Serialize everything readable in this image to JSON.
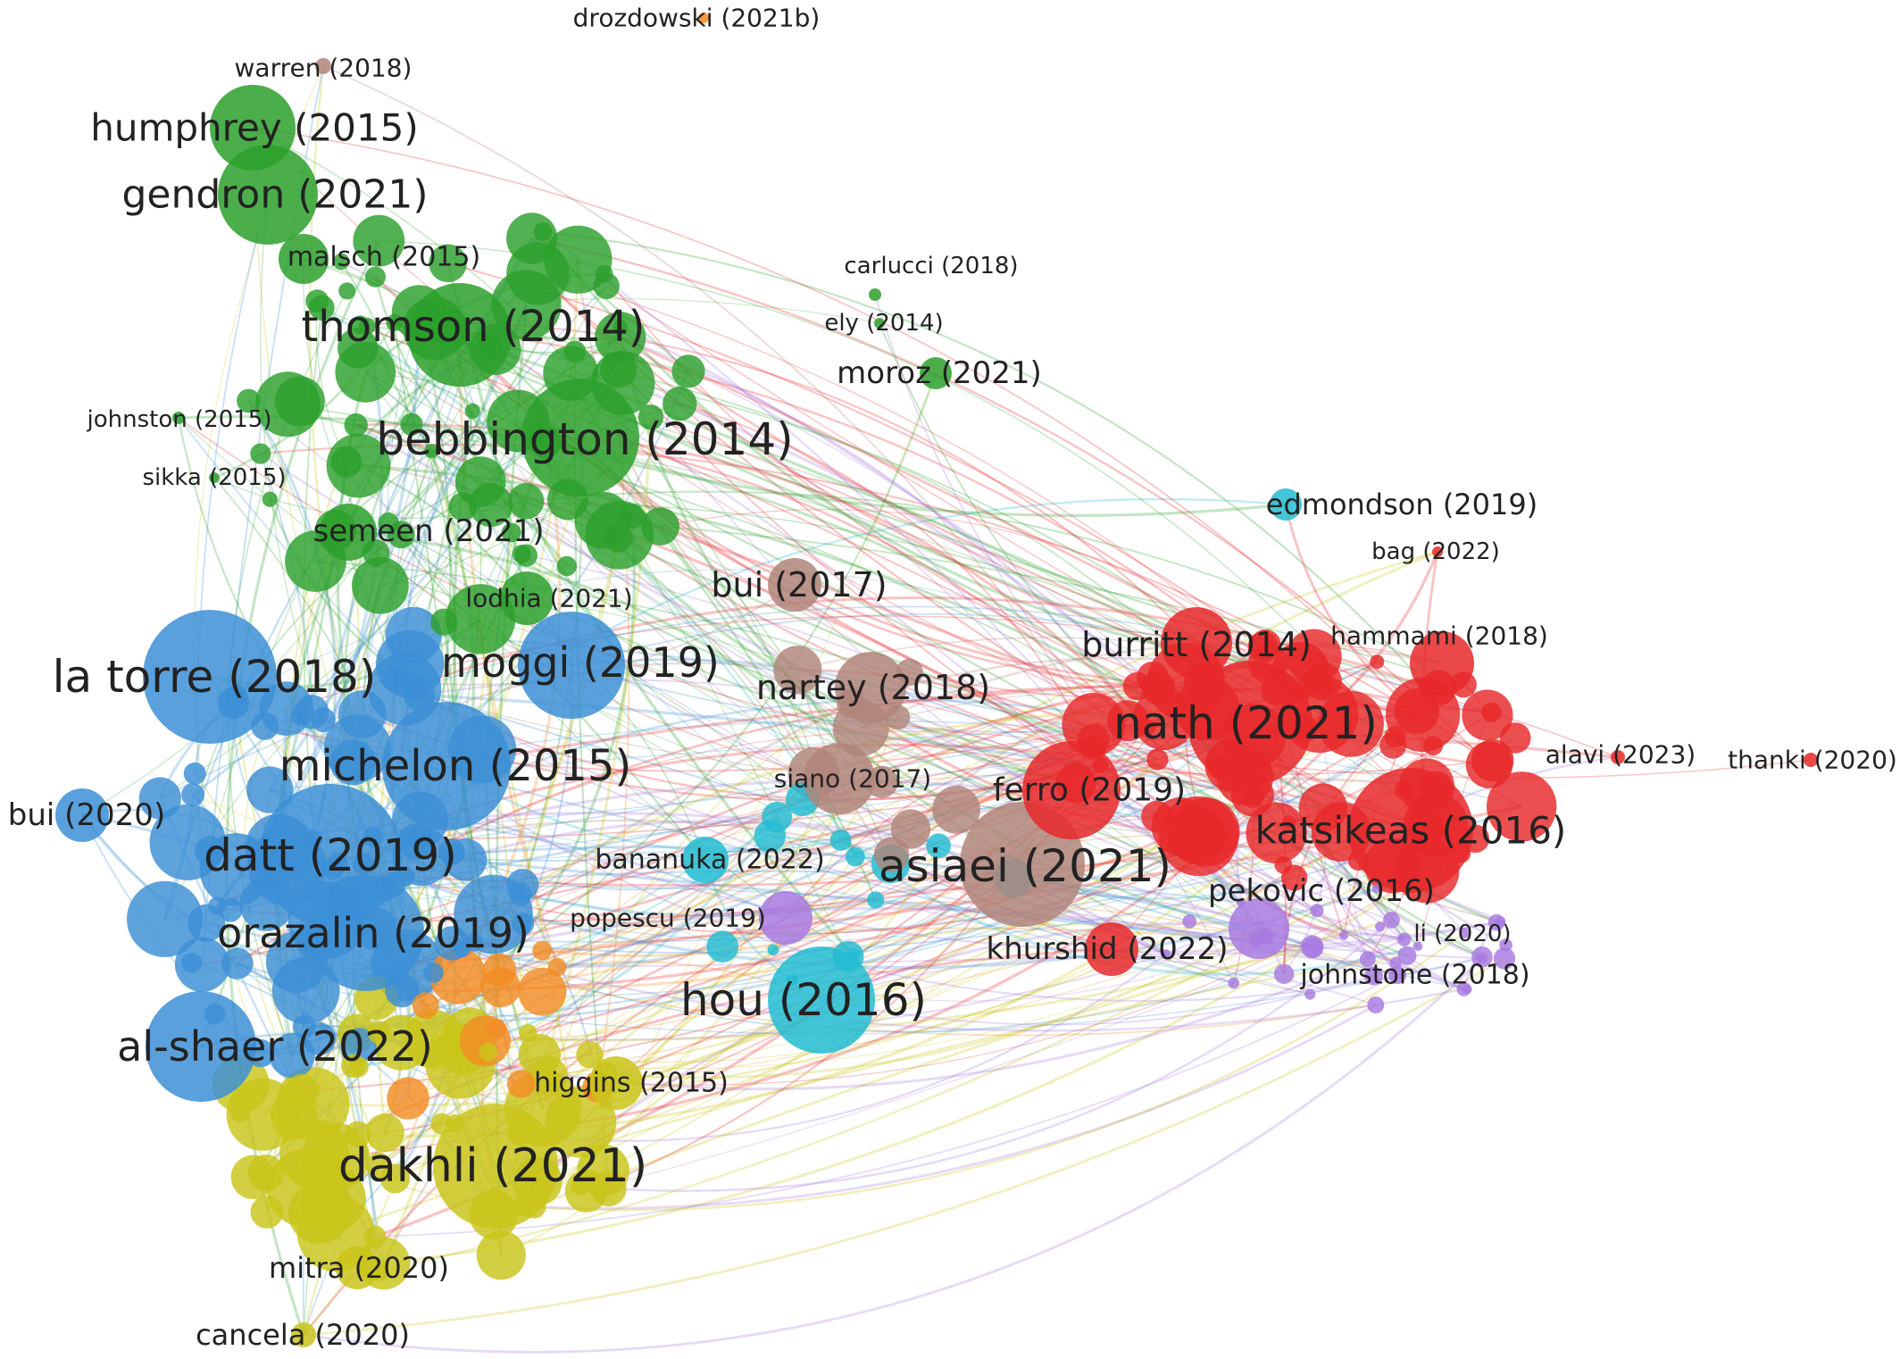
{
  "network": {
    "clusters": [
      {
        "id": "green",
        "color": "#2ca02c"
      },
      {
        "id": "blue",
        "color": "#3c8fd6"
      },
      {
        "id": "red",
        "color": "#e8282a"
      },
      {
        "id": "yellow",
        "color": "#c9c41a"
      },
      {
        "id": "cyan",
        "color": "#22bcd2"
      },
      {
        "id": "purple",
        "color": "#a77ae0"
      },
      {
        "id": "brown",
        "color": "#b0857a"
      },
      {
        "id": "orange",
        "color": "#f38c24"
      }
    ],
    "labeled_nodes": [
      {
        "id": "drozdowski-2021b",
        "label": "drozdowski (2021b)",
        "cluster": "orange",
        "weight": 1
      },
      {
        "id": "warren-2018",
        "label": "warren (2018)",
        "cluster": "brown",
        "weight": 1
      },
      {
        "id": "humphrey-2015",
        "label": "humphrey (2015)",
        "cluster": "green",
        "weight": 7
      },
      {
        "id": "gendron-2021",
        "label": "gendron (2021)",
        "cluster": "green",
        "weight": 8
      },
      {
        "id": "malsch-2015",
        "label": "malsch (2015)",
        "cluster": "green",
        "weight": 3
      },
      {
        "id": "carlucci-2018",
        "label": "carlucci (2018)",
        "cluster": "green",
        "weight": 1
      },
      {
        "id": "ely-2014",
        "label": "ely (2014)",
        "cluster": "green",
        "weight": 1
      },
      {
        "id": "thomson-2014",
        "label": "thomson (2014)",
        "cluster": "green",
        "weight": 9
      },
      {
        "id": "moroz-2021",
        "label": "moroz (2021)",
        "cluster": "green",
        "weight": 3
      },
      {
        "id": "johnston-2015",
        "label": "johnston (2015)",
        "cluster": "green",
        "weight": 1
      },
      {
        "id": "bebbington-2014",
        "label": "bebbington (2014)",
        "cluster": "green",
        "weight": 10
      },
      {
        "id": "sikka-2015",
        "label": "sikka (2015)",
        "cluster": "green",
        "weight": 1
      },
      {
        "id": "edmondson-2019",
        "label": "edmondson (2019)",
        "cluster": "cyan",
        "weight": 3
      },
      {
        "id": "semeen-2021",
        "label": "semeen (2021)",
        "cluster": "green",
        "weight": 5
      },
      {
        "id": "bag-2022",
        "label": "bag (2022)",
        "cluster": "red",
        "weight": 1
      },
      {
        "id": "bui-2017",
        "label": "bui (2017)",
        "cluster": "brown",
        "weight": 5
      },
      {
        "id": "lodhia-2021",
        "label": "lodhia (2021)",
        "cluster": "green",
        "weight": 3
      },
      {
        "id": "hammami-2018",
        "label": "hammami (2018)",
        "cluster": "red",
        "weight": 4
      },
      {
        "id": "burritt-2014",
        "label": "burritt (2014)",
        "cluster": "red",
        "weight": 6
      },
      {
        "id": "la-torre-2018",
        "label": "la torre (2018)",
        "cluster": "blue",
        "weight": 10
      },
      {
        "id": "moggi-2019",
        "label": "moggi (2019)",
        "cluster": "blue",
        "weight": 8
      },
      {
        "id": "nartey-2018",
        "label": "nartey (2018)",
        "cluster": "brown",
        "weight": 6
      },
      {
        "id": "nath-2021",
        "label": "nath (2021)",
        "cluster": "red",
        "weight": 10
      },
      {
        "id": "michelon-2015",
        "label": "michelon (2015)",
        "cluster": "blue",
        "weight": 10
      },
      {
        "id": "alavi-2023",
        "label": "alavi (2023)",
        "cluster": "red",
        "weight": 1
      },
      {
        "id": "thanki-2020",
        "label": "thanki (2020)",
        "cluster": "red",
        "weight": 1
      },
      {
        "id": "siano-2017",
        "label": "siano (2017)",
        "cluster": "brown",
        "weight": 4
      },
      {
        "id": "ferro-2019",
        "label": "ferro (2019)",
        "cluster": "red",
        "weight": 5
      },
      {
        "id": "bui-2020",
        "label": "bui (2020)",
        "cluster": "blue",
        "weight": 4
      },
      {
        "id": "katsikeas-2016",
        "label": "katsikeas (2016)",
        "cluster": "red",
        "weight": 9
      },
      {
        "id": "datt-2019",
        "label": "datt (2019)",
        "cluster": "blue",
        "weight": 10
      },
      {
        "id": "bananuka-2022",
        "label": "bananuka (2022)",
        "cluster": "cyan",
        "weight": 2
      },
      {
        "id": "asiaei-2021",
        "label": "asiaei (2021)",
        "cluster": "brown",
        "weight": 10
      },
      {
        "id": "pekovic-2016",
        "label": "pekovic (2016)",
        "cluster": "purple",
        "weight": 5
      },
      {
        "id": "popescu-2019",
        "label": "popescu (2019)",
        "cluster": "purple",
        "weight": 2
      },
      {
        "id": "orazalin-2019",
        "label": "orazalin (2019)",
        "cluster": "blue",
        "weight": 9
      },
      {
        "id": "li-2020",
        "label": "li (2020)",
        "cluster": "purple",
        "weight": 1
      },
      {
        "id": "khurshid-2022",
        "label": "khurshid (2022)",
        "cluster": "red",
        "weight": 5
      },
      {
        "id": "johnstone-2018",
        "label": "johnstone (2018)",
        "cluster": "purple",
        "weight": 2
      },
      {
        "id": "hou-2016",
        "label": "hou (2016)",
        "cluster": "cyan",
        "weight": 9
      },
      {
        "id": "al-shaer-2022",
        "label": "al-shaer (2022)",
        "cluster": "blue",
        "weight": 10
      },
      {
        "id": "higgins-2015",
        "label": "higgins (2015)",
        "cluster": "yellow",
        "weight": 4
      },
      {
        "id": "dakhli-2021",
        "label": "dakhli (2021)",
        "cluster": "yellow",
        "weight": 10
      },
      {
        "id": "mitra-2020",
        "label": "mitra (2020)",
        "cluster": "yellow",
        "weight": 3
      },
      {
        "id": "cancela-2020",
        "label": "cancela (2020)",
        "cluster": "yellow",
        "weight": 2
      }
    ]
  }
}
